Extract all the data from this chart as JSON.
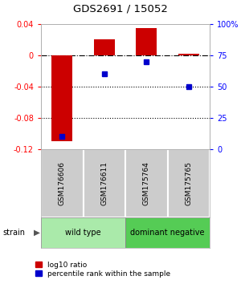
{
  "title": "GDS2691 / 15052",
  "samples": [
    "GSM176606",
    "GSM176611",
    "GSM175764",
    "GSM175765"
  ],
  "log10_ratio": [
    -0.11,
    0.02,
    0.035,
    0.002
  ],
  "percentile_rank": [
    10,
    60,
    70,
    50
  ],
  "ylim_left": [
    -0.12,
    0.04
  ],
  "ylim_right": [
    0,
    100
  ],
  "left_yticks": [
    -0.12,
    -0.08,
    -0.04,
    0.0,
    0.04
  ],
  "left_ytick_labels": [
    "-0.12",
    "-0.08",
    "-0.04",
    "0",
    "0.04"
  ],
  "right_yticks": [
    0,
    25,
    50,
    75,
    100
  ],
  "right_ytick_labels": [
    "0",
    "25",
    "50",
    "75",
    "100%"
  ],
  "groups": [
    {
      "label": "wild type",
      "samples": [
        0,
        1
      ],
      "color": "#aaeaaa"
    },
    {
      "label": "dominant negative",
      "samples": [
        2,
        3
      ],
      "color": "#55cc55"
    }
  ],
  "bar_color": "#cc0000",
  "marker_color": "#0000cc",
  "hline_y": 0.0,
  "dotted_lines": [
    -0.04,
    -0.08
  ],
  "legend_items": [
    {
      "label": "log10 ratio",
      "color": "#cc0000"
    },
    {
      "label": "percentile rank within the sample",
      "color": "#0000cc"
    }
  ],
  "bg_color": "#ffffff",
  "sample_box_color": "#cccccc",
  "strain_label": "strain"
}
